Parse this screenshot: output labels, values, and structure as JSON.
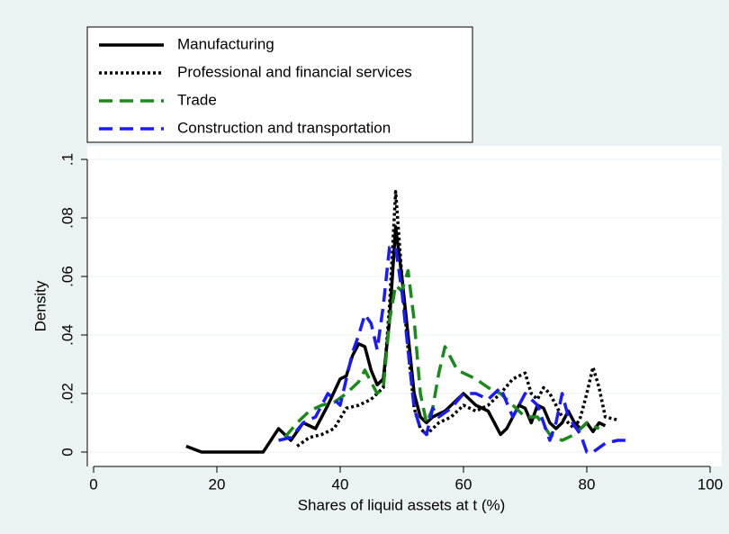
{
  "chart_data": {
    "type": "line",
    "xlabel": "Shares of liquid assets at t (%)",
    "ylabel": "Density",
    "xlim": [
      0,
      100
    ],
    "xticks": [
      0,
      20,
      40,
      60,
      80,
      100
    ],
    "ylim": [
      0,
      0.1
    ],
    "yticks": [
      0,
      {
        "value": 0.02,
        "label": ".02"
      },
      {
        "value": 0.04,
        "label": ".04"
      },
      {
        "value": 0.06,
        "label": ".06"
      },
      {
        "value": 0.08,
        "label": ".08"
      },
      {
        "value": 0.1,
        "label": ".1"
      }
    ],
    "grid": true,
    "legend": "top-left",
    "series": [
      {
        "name": "Manufacturing",
        "color": "#000000",
        "style": "solid",
        "x": [
          15,
          17.5,
          27.5,
          30,
          32,
          34,
          36,
          38,
          40,
          41,
          42,
          43,
          44,
          45,
          46,
          47,
          48,
          49,
          50,
          51,
          52,
          53,
          54,
          55,
          57,
          58,
          60,
          62,
          64,
          65,
          66,
          67,
          68,
          69,
          70,
          71,
          72,
          73,
          74,
          75,
          76,
          77,
          78,
          79,
          80,
          81,
          82,
          83
        ],
        "values": [
          0.002,
          0,
          0,
          0.008,
          0.004,
          0.01,
          0.008,
          0.016,
          0.025,
          0.026,
          0.033,
          0.037,
          0.036,
          0.028,
          0.023,
          0.025,
          0.045,
          0.077,
          0.06,
          0.04,
          0.02,
          0.012,
          0.01,
          0.012,
          0.014,
          0.016,
          0.02,
          0.016,
          0.014,
          0.01,
          0.006,
          0.008,
          0.012,
          0.016,
          0.015,
          0.01,
          0.016,
          0.015,
          0.01,
          0.008,
          0.01,
          0.014,
          0.01,
          0.008,
          0.01,
          0.007,
          0.01,
          0.009
        ]
      },
      {
        "name": "Professional and financial services",
        "color": "#000000",
        "style": "dotted",
        "x": [
          33,
          35,
          37,
          39,
          41,
          43,
          45,
          47,
          48,
          49,
          50,
          51,
          52,
          53,
          54,
          56,
          58,
          60,
          62,
          64,
          66,
          68,
          70,
          71,
          72,
          73,
          74,
          76,
          78,
          79,
          80,
          81,
          82,
          83,
          85
        ],
        "values": [
          0.002,
          0.005,
          0.006,
          0.008,
          0.015,
          0.016,
          0.018,
          0.022,
          0.05,
          0.089,
          0.06,
          0.035,
          0.015,
          0.008,
          0.006,
          0.01,
          0.012,
          0.016,
          0.014,
          0.016,
          0.02,
          0.025,
          0.027,
          0.02,
          0.018,
          0.022,
          0.02,
          0.012,
          0.008,
          0.012,
          0.02,
          0.029,
          0.022,
          0.012,
          0.011
        ]
      },
      {
        "name": "Trade",
        "color": "#1a8a1a",
        "style": "dashed",
        "x": [
          31,
          33,
          35,
          37,
          39,
          41,
          43,
          44,
          46,
          47,
          48,
          49,
          50,
          51,
          52,
          53,
          54,
          55,
          56,
          57,
          58,
          59,
          60,
          62,
          64,
          66,
          68,
          70,
          72,
          74,
          76,
          78,
          80,
          82
        ],
        "values": [
          0.005,
          0.01,
          0.014,
          0.016,
          0.017,
          0.02,
          0.024,
          0.028,
          0.02,
          0.022,
          0.045,
          0.057,
          0.055,
          0.062,
          0.045,
          0.02,
          0.01,
          0.015,
          0.027,
          0.036,
          0.032,
          0.028,
          0.027,
          0.025,
          0.022,
          0.02,
          0.016,
          0.012,
          0.012,
          0.006,
          0.004,
          0.006,
          0.01,
          0.008
        ]
      },
      {
        "name": "Construction and transportation",
        "color": "#1a1aff",
        "style": "dashed",
        "x": [
          30,
          32,
          34,
          36,
          38,
          40,
          41,
          42,
          43,
          44,
          45,
          46,
          47,
          48,
          49,
          50,
          51,
          52,
          53,
          54,
          55,
          56,
          58,
          60,
          62,
          64,
          66,
          68,
          70,
          72,
          73,
          74,
          75,
          76,
          77,
          79,
          80,
          81,
          83,
          85,
          87
        ],
        "values": [
          0.004,
          0.005,
          0.01,
          0.012,
          0.02,
          0.016,
          0.025,
          0.034,
          0.04,
          0.047,
          0.044,
          0.035,
          0.05,
          0.07,
          0.07,
          0.055,
          0.035,
          0.015,
          0.008,
          0.006,
          0.015,
          0.012,
          0.015,
          0.02,
          0.02,
          0.018,
          0.022,
          0.012,
          0.02,
          0.016,
          0.01,
          0.004,
          0.01,
          0.02,
          0.012,
          0.006,
          0,
          0,
          0.003,
          0.004,
          0.004
        ]
      }
    ]
  }
}
